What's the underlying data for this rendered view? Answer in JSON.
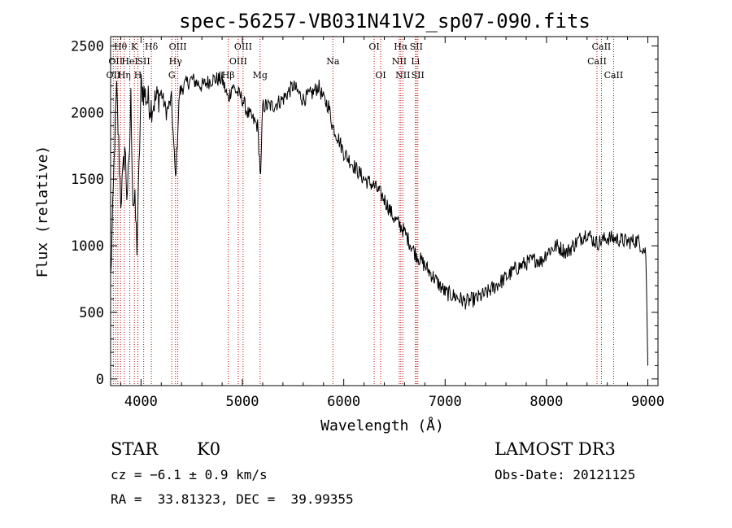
{
  "chart_data": {
    "type": "line",
    "title": "spec-56257-VB031N41V2_sp07-090.fits",
    "xlabel": "Wavelength (Å)",
    "ylabel": "Flux (relative)",
    "xlim": [
      3700,
      9100
    ],
    "ylim": [
      -50,
      2570
    ],
    "xticks": [
      4000,
      5000,
      6000,
      7000,
      8000,
      9000
    ],
    "yticks": [
      0,
      500,
      1000,
      1500,
      2000,
      2500
    ],
    "grid": false,
    "series": [
      {
        "name": "flux",
        "x": [
          3700,
          3720,
          3740,
          3760,
          3780,
          3800,
          3820,
          3840,
          3860,
          3880,
          3900,
          3920,
          3940,
          3960,
          3980,
          4000,
          4030,
          4060,
          4100,
          4150,
          4200,
          4250,
          4300,
          4340,
          4380,
          4420,
          4500,
          4600,
          4700,
          4800,
          4860,
          4900,
          4950,
          5000,
          5050,
          5100,
          5150,
          5180,
          5200,
          5300,
          5400,
          5500,
          5600,
          5700,
          5750,
          5800,
          5850,
          5890,
          5950,
          6000,
          6100,
          6200,
          6300,
          6400,
          6500,
          6560,
          6600,
          6700,
          6800,
          6900,
          7000,
          7100,
          7200,
          7300,
          7400,
          7500,
          7600,
          7700,
          7800,
          7900,
          7950,
          8000,
          8100,
          8200,
          8300,
          8400,
          8450,
          8500,
          8550,
          8600,
          8700,
          8800,
          8900,
          8980,
          9000
        ],
        "values": [
          750,
          1200,
          1800,
          2150,
          1750,
          1350,
          1500,
          1750,
          1400,
          1550,
          2100,
          1350,
          1300,
          1000,
          1550,
          2200,
          2150,
          2100,
          2050,
          2100,
          2150,
          2000,
          2100,
          1500,
          2150,
          2200,
          2250,
          2200,
          2250,
          2250,
          2100,
          2200,
          2150,
          2100,
          2000,
          1950,
          1900,
          1500,
          2050,
          2050,
          2100,
          2200,
          2100,
          2150,
          2200,
          2100,
          2050,
          1900,
          1800,
          1700,
          1600,
          1500,
          1450,
          1350,
          1200,
          1150,
          1100,
          950,
          850,
          750,
          650,
          620,
          580,
          600,
          640,
          700,
          760,
          830,
          870,
          900,
          880,
          950,
          1000,
          950,
          1030,
          1100,
          1050,
          1020,
          1040,
          1060,
          1050,
          1030,
          1040,
          950,
          100
        ]
      }
    ],
    "lines": [
      {
        "x": 3727,
        "labels": [
          "OII"
        ],
        "row": 2
      },
      {
        "x": 3750,
        "labels": [
          "OII"
        ],
        "row": 1
      },
      {
        "x": 3771,
        "labels": [],
        "row": 0
      },
      {
        "x": 3798,
        "labels": [
          "Hθ"
        ],
        "row": 0
      },
      {
        "x": 3835,
        "labels": [
          "Hη"
        ],
        "row": 2
      },
      {
        "x": 3889,
        "labels": [
          "HeI"
        ],
        "row": 1
      },
      {
        "x": 3934,
        "labels": [
          "K"
        ],
        "row": 0
      },
      {
        "x": 3969,
        "labels": [
          "H"
        ],
        "row": 2
      },
      {
        "x": 4026,
        "labels": [
          "SII"
        ],
        "row": 1
      },
      {
        "x": 4102,
        "labels": [
          "Hδ"
        ],
        "row": 0
      },
      {
        "x": 4304,
        "labels": [
          "G"
        ],
        "row": 2
      },
      {
        "x": 4340,
        "labels": [
          "Hγ"
        ],
        "row": 1
      },
      {
        "x": 4363,
        "labels": [
          "OIII"
        ],
        "row": 0
      },
      {
        "x": 4861,
        "labels": [
          "Hβ"
        ],
        "row": 2
      },
      {
        "x": 4959,
        "labels": [
          "OIII"
        ],
        "row": 1
      },
      {
        "x": 5007,
        "labels": [
          "OIII"
        ],
        "row": 0
      },
      {
        "x": 5175,
        "labels": [
          "Mg"
        ],
        "row": 2
      },
      {
        "x": 5893,
        "labels": [
          "Na"
        ],
        "row": 1
      },
      {
        "x": 6300,
        "labels": [
          "OI"
        ],
        "row": 0
      },
      {
        "x": 6364,
        "labels": [
          "OI"
        ],
        "row": 2
      },
      {
        "x": 6548,
        "labels": [
          "NII"
        ],
        "row": 1
      },
      {
        "x": 6563,
        "labels": [
          "Hα"
        ],
        "row": 0
      },
      {
        "x": 6583,
        "labels": [
          "NII"
        ],
        "row": 2
      },
      {
        "x": 6707,
        "labels": [
          "Li"
        ],
        "row": 1
      },
      {
        "x": 6716,
        "labels": [
          "SII"
        ],
        "row": 0
      },
      {
        "x": 6731,
        "labels": [
          "SII"
        ],
        "row": 2
      },
      {
        "x": 8498,
        "labels": [
          "CaII"
        ],
        "row": 1
      },
      {
        "x": 8542,
        "labels": [
          "CaII"
        ],
        "row": 0
      },
      {
        "x": 8662,
        "labels": [
          "CaII"
        ],
        "row": 2
      }
    ]
  },
  "info": {
    "object_class": "STAR",
    "subclass": "K0",
    "survey": "LAMOST DR3",
    "cz": "cz = −6.1 ± 0.9 km/s",
    "obs_date": "Obs-Date: 20121125",
    "coords": "RA =  33.81323, DEC =  39.99355"
  }
}
